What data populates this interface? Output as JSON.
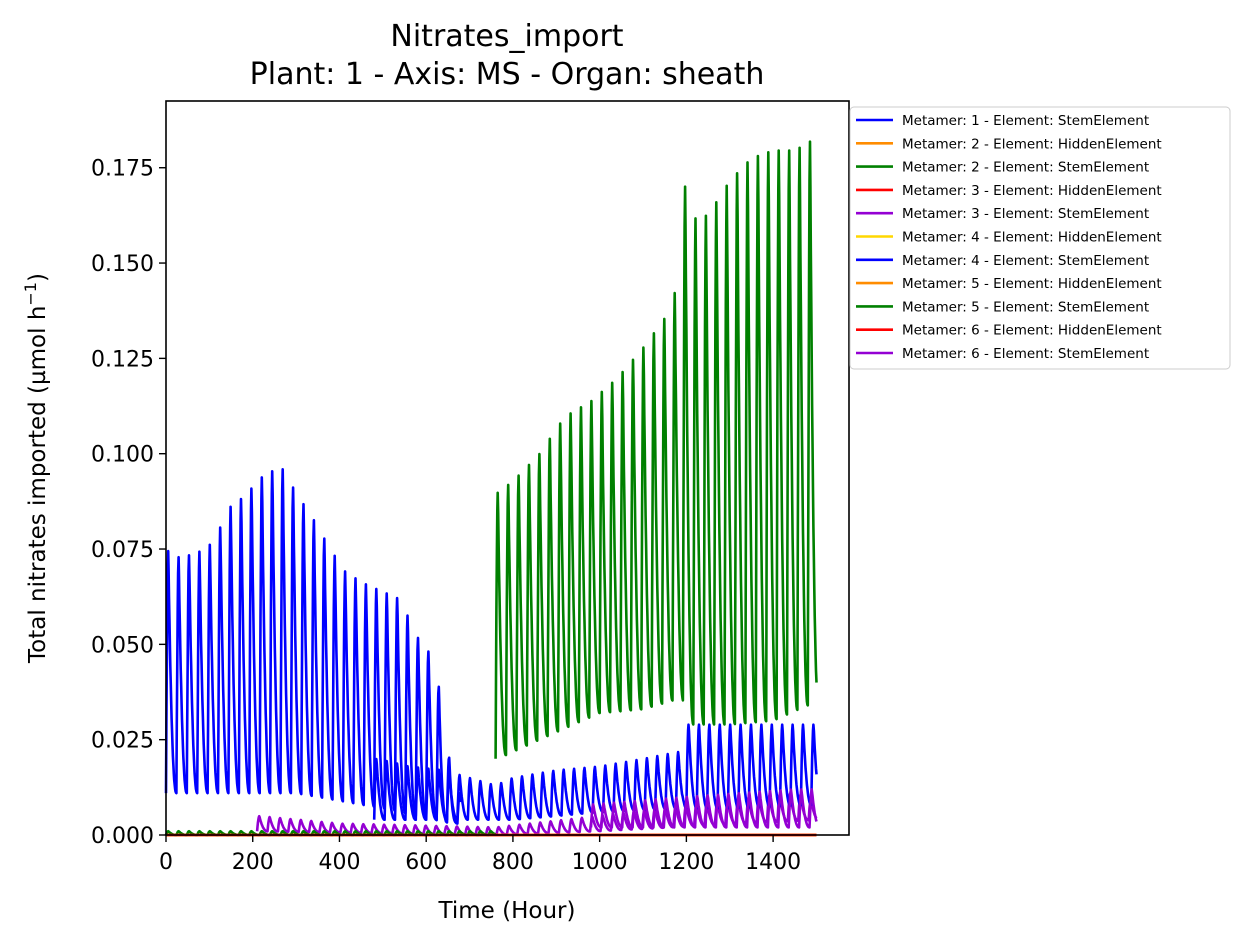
{
  "chart_data": {
    "type": "line",
    "title": "Nitrates_import",
    "subtitle": "Plant: 1 - Axis: MS - Organ: sheath",
    "xlabel": "Time (Hour)",
    "ylabel": "Total nitrates imported (µmol h",
    "ylabel_superscript": "−1",
    "ylabel_suffix": ")",
    "xlim": [
      0,
      1575
    ],
    "ylim": [
      0,
      0.1925
    ],
    "xticks": [
      0,
      200,
      400,
      600,
      800,
      1000,
      1200,
      1400
    ],
    "yticks": [
      0.0,
      0.025,
      0.05,
      0.075,
      0.1,
      0.125,
      0.15,
      0.175
    ],
    "xtick_labels": [
      "0",
      "200",
      "400",
      "600",
      "800",
      "1000",
      "1200",
      "1400"
    ],
    "ytick_labels": [
      "0.000",
      "0.025",
      "0.050",
      "0.075",
      "0.100",
      "0.125",
      "0.150",
      "0.175"
    ],
    "grid": false,
    "legend_position": "outside-top-right",
    "series": [
      {
        "name": "Metamer: 1 - Element: StemElement",
        "color": "#0000ff",
        "x_start": 0,
        "x_end": 680,
        "peak_period": 24,
        "peaks": [
          [
            0,
            0.075
          ],
          [
            30,
            0.073
          ],
          [
            70,
            0.074
          ],
          [
            110,
            0.077
          ],
          [
            145,
            0.086
          ],
          [
            180,
            0.089
          ],
          [
            220,
            0.094
          ],
          [
            265,
            0.097
          ],
          [
            300,
            0.09
          ],
          [
            340,
            0.083
          ],
          [
            380,
            0.075
          ],
          [
            415,
            0.069
          ],
          [
            460,
            0.066
          ],
          [
            500,
            0.064
          ],
          [
            540,
            0.062
          ],
          [
            580,
            0.052
          ],
          [
            620,
            0.046
          ],
          [
            665,
            0.011
          ]
        ],
        "troughs": [
          [
            0,
            0.011
          ],
          [
            300,
            0.011
          ],
          [
            500,
            0.007
          ],
          [
            660,
            0.003
          ]
        ]
      },
      {
        "name": "Metamer: 2 - Element: HiddenElement",
        "color": "#ff8c00",
        "x_start": 0,
        "x_end": 1500,
        "constant": 0.0
      },
      {
        "name": "Metamer: 2 - Element: StemElement",
        "color": "#008000",
        "x_start": 760,
        "x_end": 1500,
        "peak_period": 24,
        "peaks": [
          [
            765,
            0.09
          ],
          [
            800,
            0.093
          ],
          [
            860,
            0.1
          ],
          [
            920,
            0.11
          ],
          [
            980,
            0.114
          ],
          [
            1040,
            0.12
          ],
          [
            1100,
            0.128
          ],
          [
            1170,
            0.139
          ],
          [
            1200,
            0.174
          ],
          [
            1215,
            0.162
          ],
          [
            1250,
            0.163
          ],
          [
            1300,
            0.172
          ],
          [
            1350,
            0.178
          ],
          [
            1400,
            0.18
          ],
          [
            1450,
            0.18
          ],
          [
            1495,
            0.183
          ]
        ],
        "troughs": [
          [
            765,
            0.02
          ],
          [
            900,
            0.027
          ],
          [
            1000,
            0.032
          ],
          [
            1100,
            0.033
          ],
          [
            1190,
            0.036
          ],
          [
            1210,
            0.029
          ],
          [
            1300,
            0.029
          ],
          [
            1400,
            0.03
          ],
          [
            1500,
            0.035
          ]
        ]
      },
      {
        "name": "Metamer: 3 - Element: HiddenElement",
        "color": "#ff0000",
        "x_start": 0,
        "x_end": 1500,
        "constant": 0.0
      },
      {
        "name": "Metamer: 3 - Element: StemElement",
        "color": "#9400d3",
        "x_start": 210,
        "x_end": 1500,
        "peak_period": 24,
        "peaks": [
          [
            210,
            0.005
          ],
          [
            400,
            0.003
          ],
          [
            760,
            0.002
          ],
          [
            1000,
            0.005
          ],
          [
            1200,
            0.008
          ],
          [
            1450,
            0.011
          ],
          [
            1500,
            0.009
          ]
        ],
        "troughs": [
          [
            210,
            0.001
          ],
          [
            760,
            0.0
          ],
          [
            1000,
            0.001
          ],
          [
            1500,
            0.004
          ]
        ]
      },
      {
        "name": "Metamer: 4 - Element: HiddenElement",
        "color": "#ffd700",
        "x_start": 0,
        "x_end": 1500,
        "constant": 0.0
      },
      {
        "name": "Metamer: 4 - Element: StemElement",
        "color": "#0000ff",
        "x_start": 480,
        "x_end": 1500,
        "peak_period": 24,
        "peaks": [
          [
            490,
            0.02
          ],
          [
            560,
            0.018
          ],
          [
            640,
            0.017
          ],
          [
            700,
            0.015
          ],
          [
            760,
            0.013
          ],
          [
            800,
            0.015
          ],
          [
            900,
            0.017
          ],
          [
            1000,
            0.018
          ],
          [
            1100,
            0.02
          ],
          [
            1190,
            0.022
          ],
          [
            1195,
            0.029
          ],
          [
            1300,
            0.029
          ],
          [
            1500,
            0.029
          ]
        ],
        "troughs": [
          [
            490,
            0.004
          ],
          [
            700,
            0.004
          ],
          [
            800,
            0.004
          ],
          [
            1000,
            0.006
          ],
          [
            1190,
            0.007
          ],
          [
            1300,
            0.007
          ],
          [
            1500,
            0.008
          ]
        ]
      },
      {
        "name": "Metamer: 5 - Element: HiddenElement",
        "color": "#ff8c00",
        "x_start": 0,
        "x_end": 1500,
        "constant": 0.0
      },
      {
        "name": "Metamer: 5 - Element: StemElement",
        "color": "#008000",
        "x_start": 0,
        "x_end": 760,
        "peak_period": 24,
        "peaks": [
          [
            0,
            0.001
          ],
          [
            760,
            0.001
          ]
        ],
        "troughs": [
          [
            0,
            0.0
          ],
          [
            760,
            0.0
          ]
        ]
      },
      {
        "name": "Metamer: 6 - Element: HiddenElement",
        "color": "#ff0000",
        "x_start": 0,
        "x_end": 1500,
        "constant": 0.0
      },
      {
        "name": "Metamer: 6 - Element: StemElement",
        "color": "#9400d3",
        "x_start": 980,
        "x_end": 1500,
        "peak_period": 24,
        "peaks": [
          [
            980,
            0.008
          ],
          [
            1200,
            0.01
          ],
          [
            1450,
            0.012
          ],
          [
            1500,
            0.012
          ]
        ],
        "troughs": [
          [
            980,
            0.002
          ],
          [
            1200,
            0.002
          ],
          [
            1500,
            0.002
          ]
        ]
      }
    ]
  }
}
